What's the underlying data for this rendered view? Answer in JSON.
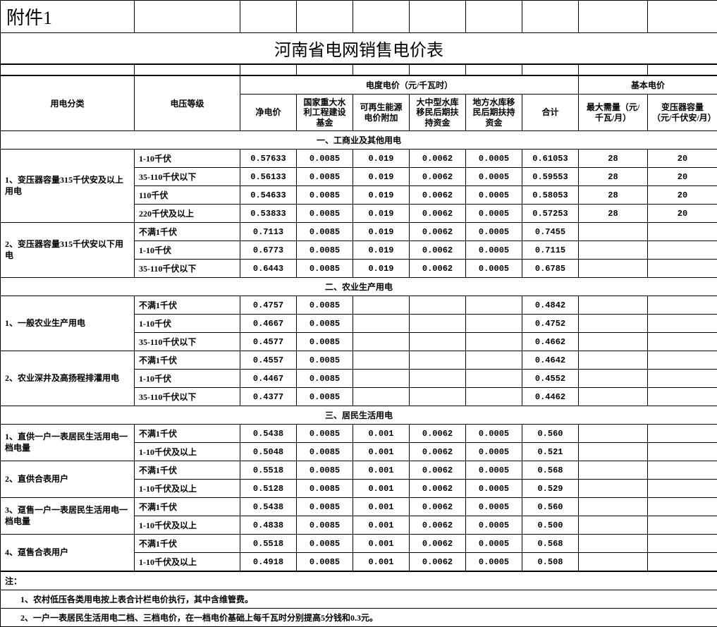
{
  "attachment_label": "附件1",
  "title": "河南省电网销售电价表",
  "headers": {
    "category": "用电分类",
    "voltage": "电压等级",
    "energy_price": "电度电价（元/千瓦时）",
    "basic_price": "基本电价",
    "net": "净电价",
    "water_fund": "国家重大水利工程建设基金",
    "renewable": "可再生能源电价附加",
    "large_reservoir": "大中型水库移民后期扶持资金",
    "local_reservoir": "地方水库移民后期扶持资金",
    "total": "合计",
    "max_demand": "最大需量（元/千瓦/月）",
    "transformer_cap": "变压器容量（元/千伏安/月）"
  },
  "sections": [
    {
      "title": "一、工商业及其他用电",
      "groups": [
        {
          "name": "1、变压器容量315千伏安及以上用电",
          "rows": [
            {
              "volt": "1-10千伏",
              "net": "0.57633",
              "f1": "0.0085",
              "f2": "0.019",
              "f3": "0.0062",
              "f4": "0.0005",
              "sum": "0.61053",
              "md": "28",
              "tc": "20"
            },
            {
              "volt": "35-110千伏以下",
              "net": "0.56133",
              "f1": "0.0085",
              "f2": "0.019",
              "f3": "0.0062",
              "f4": "0.0005",
              "sum": "0.59553",
              "md": "28",
              "tc": "20"
            },
            {
              "volt": "110千伏",
              "net": "0.54633",
              "f1": "0.0085",
              "f2": "0.019",
              "f3": "0.0062",
              "f4": "0.0005",
              "sum": "0.58053",
              "md": "28",
              "tc": "20"
            },
            {
              "volt": "220千伏及以上",
              "net": "0.53833",
              "f1": "0.0085",
              "f2": "0.019",
              "f3": "0.0062",
              "f4": "0.0005",
              "sum": "0.57253",
              "md": "28",
              "tc": "20"
            }
          ]
        },
        {
          "name": "2、变压器容量315千伏安以下用电",
          "rows": [
            {
              "volt": "不满1千伏",
              "net": "0.7113",
              "f1": "0.0085",
              "f2": "0.019",
              "f3": "0.0062",
              "f4": "0.0005",
              "sum": "0.7455",
              "md": "",
              "tc": ""
            },
            {
              "volt": "1-10千伏",
              "net": "0.6773",
              "f1": "0.0085",
              "f2": "0.019",
              "f3": "0.0062",
              "f4": "0.0005",
              "sum": "0.7115",
              "md": "",
              "tc": ""
            },
            {
              "volt": "35-110千伏以下",
              "net": "0.6443",
              "f1": "0.0085",
              "f2": "0.019",
              "f3": "0.0062",
              "f4": "0.0005",
              "sum": "0.6785",
              "md": "",
              "tc": ""
            }
          ]
        }
      ]
    },
    {
      "title": "二、农业生产用电",
      "groups": [
        {
          "name": "1、一般农业生产用电",
          "rows": [
            {
              "volt": "不满1千伏",
              "net": "0.4757",
              "f1": "0.0085",
              "f2": "",
              "f3": "",
              "f4": "",
              "sum": "0.4842",
              "md": "",
              "tc": ""
            },
            {
              "volt": "1-10千伏",
              "net": "0.4667",
              "f1": "0.0085",
              "f2": "",
              "f3": "",
              "f4": "",
              "sum": "0.4752",
              "md": "",
              "tc": ""
            },
            {
              "volt": "35-110千伏以下",
              "net": "0.4577",
              "f1": "0.0085",
              "f2": "",
              "f3": "",
              "f4": "",
              "sum": "0.4662",
              "md": "",
              "tc": ""
            }
          ]
        },
        {
          "name": "2、农业深井及高扬程排灌用电",
          "rows": [
            {
              "volt": "不满1千伏",
              "net": "0.4557",
              "f1": "0.0085",
              "f2": "",
              "f3": "",
              "f4": "",
              "sum": "0.4642",
              "md": "",
              "tc": ""
            },
            {
              "volt": "1-10千伏",
              "net": "0.4467",
              "f1": "0.0085",
              "f2": "",
              "f3": "",
              "f4": "",
              "sum": "0.4552",
              "md": "",
              "tc": ""
            },
            {
              "volt": "35-110千伏以下",
              "net": "0.4377",
              "f1": "0.0085",
              "f2": "",
              "f3": "",
              "f4": "",
              "sum": "0.4462",
              "md": "",
              "tc": ""
            }
          ]
        }
      ]
    },
    {
      "title": "三、居民生活用电",
      "groups": [
        {
          "name": "1、直供一户一表居民生活用电一档电量",
          "rows": [
            {
              "volt": "不满1千伏",
              "net": "0.5438",
              "f1": "0.0085",
              "f2": "0.001",
              "f3": "0.0062",
              "f4": "0.0005",
              "sum": "0.560",
              "md": "",
              "tc": ""
            },
            {
              "volt": "1-10千伏及以上",
              "net": "0.5048",
              "f1": "0.0085",
              "f2": "0.001",
              "f3": "0.0062",
              "f4": "0.0005",
              "sum": "0.521",
              "md": "",
              "tc": ""
            }
          ]
        },
        {
          "name": "2、直供合表用户",
          "rows": [
            {
              "volt": "不满1千伏",
              "net": "0.5518",
              "f1": "0.0085",
              "f2": "0.001",
              "f3": "0.0062",
              "f4": "0.0005",
              "sum": "0.568",
              "md": "",
              "tc": ""
            },
            {
              "volt": "1-10千伏及以上",
              "net": "0.5128",
              "f1": "0.0085",
              "f2": "0.001",
              "f3": "0.0062",
              "f4": "0.0005",
              "sum": "0.529",
              "md": "",
              "tc": ""
            }
          ]
        },
        {
          "name": "3、趸售一户一表居民生活用电一档电量",
          "rows": [
            {
              "volt": "不满1千伏",
              "net": "0.5438",
              "f1": "0.0085",
              "f2": "0.001",
              "f3": "0.0062",
              "f4": "0.0005",
              "sum": "0.560",
              "md": "",
              "tc": ""
            },
            {
              "volt": "1-10千伏及以上",
              "net": "0.4838",
              "f1": "0.0085",
              "f2": "0.001",
              "f3": "0.0062",
              "f4": "0.0005",
              "sum": "0.500",
              "md": "",
              "tc": ""
            }
          ]
        },
        {
          "name": "4、趸售合表用户",
          "rows": [
            {
              "volt": "不满1千伏",
              "net": "0.5518",
              "f1": "0.0085",
              "f2": "0.001",
              "f3": "0.0062",
              "f4": "0.0005",
              "sum": "0.568",
              "md": "",
              "tc": ""
            },
            {
              "volt": "1-10千伏及以上",
              "net": "0.4918",
              "f1": "0.0085",
              "f2": "0.001",
              "f3": "0.0062",
              "f4": "0.0005",
              "sum": "0.508",
              "md": "",
              "tc": ""
            }
          ]
        }
      ]
    }
  ],
  "notes_label": "注：",
  "notes": [
    "1、农村低压各类用电按上表合计栏电价执行，其中含维管费。",
    "2、一户一表居民生活用电二档、三档电价，在一档电价基础上每千瓦时分别提高5分钱和0.3元。"
  ],
  "col_widths": [
    "190",
    "150",
    "80",
    "80",
    "80",
    "80",
    "80",
    "80",
    "98",
    "99"
  ]
}
